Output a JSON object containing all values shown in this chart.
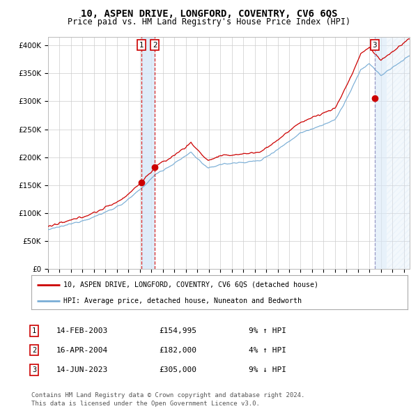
{
  "title": "10, ASPEN DRIVE, LONGFORD, COVENTRY, CV6 6QS",
  "subtitle": "Price paid vs. HM Land Registry's House Price Index (HPI)",
  "title_fontsize": 10,
  "subtitle_fontsize": 8.5,
  "ylabel_ticks": [
    "£0",
    "£50K",
    "£100K",
    "£150K",
    "£200K",
    "£250K",
    "£300K",
    "£350K",
    "£400K"
  ],
  "ytick_values": [
    0,
    50000,
    100000,
    150000,
    200000,
    250000,
    300000,
    350000,
    400000
  ],
  "ylim": [
    0,
    415000
  ],
  "xlim_start": 1995.0,
  "xlim_end": 2026.5,
  "sale1_x": 2003.12,
  "sale1_y": 154995,
  "sale2_x": 2004.29,
  "sale2_y": 182000,
  "sale3_x": 2023.45,
  "sale3_y": 305000,
  "property_line_color": "#cc0000",
  "hpi_line_color": "#7aaed6",
  "sale_dot_color": "#cc0000",
  "bg_color": "#ffffff",
  "grid_color": "#cccccc",
  "vline1_color": "#cc0000",
  "vline2_color": "#8888bb",
  "shade1_color": "#d8e8f8",
  "shade3_color": "#d8e8f8",
  "legend1_text": "10, ASPEN DRIVE, LONGFORD, COVENTRY, CV6 6QS (detached house)",
  "legend2_text": "HPI: Average price, detached house, Nuneaton and Bedworth",
  "sale_rows": [
    {
      "num": "1",
      "date": "14-FEB-2003",
      "price": "£154,995",
      "hpi": "9% ↑ HPI"
    },
    {
      "num": "2",
      "date": "16-APR-2004",
      "price": "£182,000",
      "hpi": "4% ↑ HPI"
    },
    {
      "num": "3",
      "date": "14-JUN-2023",
      "price": "£305,000",
      "hpi": "9% ↓ HPI"
    }
  ],
  "footer1": "Contains HM Land Registry data © Crown copyright and database right 2024.",
  "footer2": "This data is licensed under the Open Government Licence v3.0."
}
